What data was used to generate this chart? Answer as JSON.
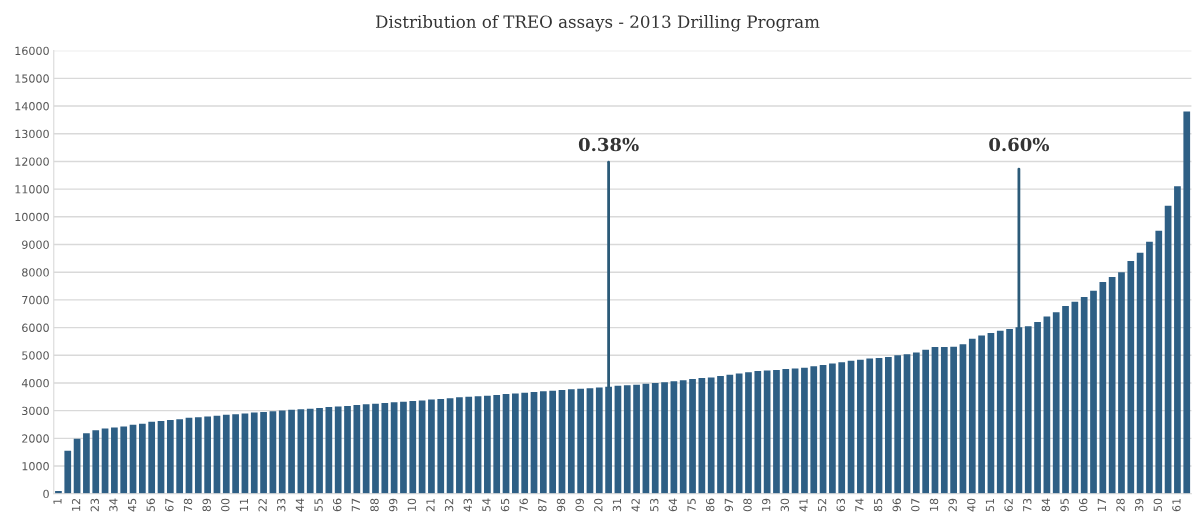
{
  "chart_data": {
    "type": "bar",
    "title": "Distribution of TREO assays - 2013 Drilling Program",
    "categories": [
      "1",
      null,
      "12",
      null,
      "23",
      null,
      "34",
      null,
      "45",
      null,
      "56",
      null,
      "67",
      null,
      "78",
      null,
      "89",
      null,
      "00",
      null,
      "11",
      null,
      "22",
      null,
      "33",
      null,
      "44",
      null,
      "55",
      null,
      "66",
      null,
      "77",
      null,
      "88",
      null,
      "99",
      null,
      "10",
      null,
      "21",
      null,
      "32",
      null,
      "43",
      null,
      "54",
      null,
      "65",
      null,
      "76",
      null,
      "87",
      null,
      "98",
      null,
      "09",
      null,
      "20",
      null,
      "31",
      null,
      "42",
      null,
      "53",
      null,
      "64",
      null,
      "75",
      null,
      "86",
      null,
      "97",
      null,
      "08",
      null,
      "19",
      null,
      "30",
      null,
      "41",
      null,
      "52",
      null,
      "63",
      null,
      "74",
      null,
      "85",
      null,
      "96",
      null,
      "07",
      null,
      "18",
      null,
      "29",
      null,
      "40",
      null,
      "51",
      null,
      "62",
      null,
      "73",
      null,
      "84",
      null,
      "95",
      null,
      "06",
      null,
      "17",
      null,
      "28",
      null,
      "39",
      null,
      "50",
      null,
      "61",
      null
    ],
    "values": [
      100,
      1550,
      1990,
      2180,
      2290,
      2360,
      2390,
      2430,
      2490,
      2530,
      2600,
      2630,
      2660,
      2690,
      2740,
      2760,
      2790,
      2820,
      2850,
      2870,
      2900,
      2930,
      2950,
      2980,
      3010,
      3030,
      3050,
      3070,
      3100,
      3130,
      3150,
      3170,
      3200,
      3230,
      3250,
      3280,
      3300,
      3320,
      3350,
      3370,
      3400,
      3420,
      3450,
      3480,
      3500,
      3520,
      3540,
      3570,
      3600,
      3620,
      3650,
      3670,
      3700,
      3720,
      3750,
      3770,
      3790,
      3810,
      3840,
      3860,
      3900,
      3920,
      3940,
      3970,
      4000,
      4030,
      4060,
      4100,
      4140,
      4180,
      4200,
      4250,
      4300,
      4340,
      4390,
      4430,
      4450,
      4470,
      4500,
      4520,
      4550,
      4600,
      4650,
      4700,
      4750,
      4800,
      4840,
      4880,
      4900,
      4940,
      5000,
      5040,
      5100,
      5200,
      5300,
      5300,
      5310,
      5400,
      5600,
      5710,
      5800,
      5890,
      5950,
      6010,
      6050,
      6200,
      6400,
      6550,
      6780,
      6930,
      7100,
      7330,
      7650,
      7830,
      8000,
      8400,
      8700,
      9100,
      9500,
      10400,
      11100,
      13800
    ],
    "color": "#2e5f85",
    "ylim": [
      0,
      16000
    ],
    "yticks": [
      0,
      1000,
      2000,
      3000,
      4000,
      5000,
      6000,
      7000,
      8000,
      9000,
      10000,
      11000,
      12000,
      13000,
      14000,
      15000,
      16000
    ],
    "grid": "y",
    "annotations": [
      {
        "text": "0.38%",
        "y": 3860
      },
      {
        "text": "0.60%",
        "y": 6000
      }
    ]
  }
}
